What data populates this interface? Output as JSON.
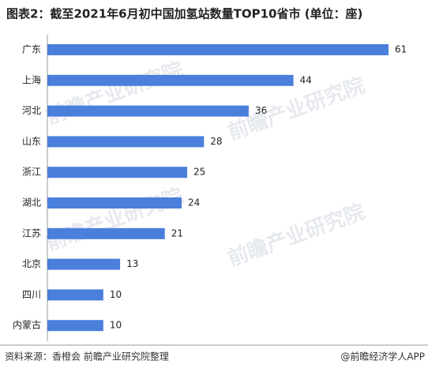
{
  "chart_data": {
    "type": "bar",
    "orientation": "horizontal",
    "title": "图表2：截至2021年6月初中国加氢站数量TOP10省市 (单位：座)",
    "categories": [
      "广东",
      "上海",
      "河北",
      "山东",
      "浙江",
      "湖北",
      "江苏",
      "北京",
      "四川",
      "内蒙古"
    ],
    "values": [
      61,
      44,
      36,
      28,
      25,
      24,
      21,
      13,
      10,
      10
    ],
    "color": "#4a7fdc",
    "xlim": [
      0,
      61
    ],
    "source": "资料来源：香橙会 前瞻产业研究院整理",
    "credit": "@前瞻经济学人APP",
    "watermark": "前瞻产业研究院"
  }
}
